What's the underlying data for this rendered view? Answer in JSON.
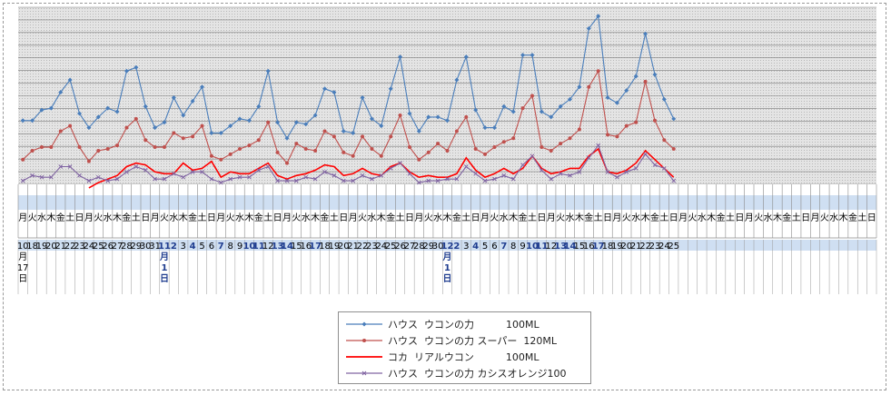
{
  "chart_data": {
    "type": "line",
    "ylim": [
      0,
      100
    ],
    "grid": true,
    "legend_position": "bottom-center",
    "weekday_labels": [
      "月",
      "火",
      "水",
      "木",
      "金",
      "土",
      "日",
      "月",
      "火",
      "水",
      "木",
      "金",
      "土",
      "日",
      "月",
      "火",
      "水",
      "木",
      "金",
      "土",
      "日",
      "月",
      "火",
      "水",
      "木",
      "金",
      "土",
      "日",
      "月",
      "火",
      "水",
      "木",
      "金",
      "土",
      "日",
      "月",
      "火",
      "水",
      "木",
      "金",
      "土",
      "日",
      "月",
      "火",
      "水",
      "木",
      "金",
      "土",
      "日",
      "月",
      "火",
      "水",
      "木",
      "金",
      "土",
      "日",
      "月",
      "火",
      "水",
      "木",
      "金",
      "土",
      "日",
      "月",
      "火",
      "水",
      "木",
      "金",
      "土",
      "日",
      "月",
      "火",
      "水",
      "木",
      "金",
      "土",
      "日",
      "月",
      "火",
      "水",
      "木",
      "金",
      "土",
      "日",
      "月",
      "火",
      "水",
      "木",
      "金",
      "土",
      "日"
    ],
    "date_labels": [
      "10\n月\n17\n日",
      "18",
      "19",
      "20",
      "21",
      "22",
      "23",
      "24",
      "25",
      "26",
      "27",
      "28",
      "29",
      "30",
      "31",
      "11\n月\n1\n日",
      "2",
      "3",
      "4",
      "5",
      "6",
      "7",
      "8",
      "9",
      "10",
      "11",
      "12",
      "13",
      "14",
      "15",
      "16",
      "17",
      "18",
      "19",
      "20",
      "21",
      "22",
      "23",
      "24",
      "25",
      "26",
      "27",
      "28",
      "29",
      "30",
      "12\n月\n1\n日",
      "2",
      "3",
      "4",
      "5",
      "6",
      "7",
      "8",
      "9",
      "10",
      "11",
      "12",
      "13",
      "14",
      "15",
      "16",
      "17",
      "18",
      "19",
      "20",
      "21",
      "22",
      "23",
      "24",
      "25"
    ],
    "date_label_style": [
      "black",
      "black",
      "black",
      "black",
      "black",
      "black",
      "black",
      "black",
      "black",
      "black",
      "black",
      "black",
      "black",
      "black",
      "black",
      "blue",
      "blue",
      "black",
      "blue",
      "black",
      "black",
      "blue",
      "black",
      "black",
      "blue",
      "blue",
      "black",
      "blue",
      "blue",
      "black",
      "black",
      "blue",
      "black",
      "black",
      "black",
      "black",
      "black",
      "black",
      "black",
      "black",
      "black",
      "black",
      "black",
      "black",
      "black",
      "blue",
      "blue",
      "black",
      "blue",
      "black",
      "black",
      "blue",
      "black",
      "black",
      "blue",
      "blue",
      "black",
      "blue",
      "blue",
      "black",
      "black",
      "blue",
      "black",
      "black",
      "black",
      "black",
      "black",
      "black",
      "black",
      "black"
    ],
    "series": [
      {
        "name": "ハウス ウコンの力 100ML",
        "color": "#4a7ebb",
        "values": [
          36,
          36,
          42,
          43,
          52,
          59,
          40,
          32,
          38,
          43,
          41,
          64,
          66,
          44,
          32,
          35,
          49,
          39,
          47,
          55,
          29,
          29,
          33,
          37,
          36,
          44,
          64,
          35,
          26,
          35,
          34,
          39,
          54,
          52,
          30,
          29,
          49,
          37,
          33,
          54,
          72,
          40,
          30,
          38,
          38,
          36,
          59,
          72,
          42,
          32,
          32,
          44,
          41,
          73,
          73,
          41,
          38,
          44,
          48,
          55,
          88,
          95,
          49,
          46,
          53,
          61,
          85,
          62,
          48,
          37
        ]
      },
      {
        "name": "ハウス ウコンの力 スーパー 120ML",
        "color": "#c0504d",
        "values": [
          14,
          19,
          21,
          21,
          30,
          33,
          21,
          13,
          19,
          20,
          22,
          32,
          37,
          25,
          21,
          21,
          29,
          26,
          27,
          33,
          16,
          14,
          17,
          20,
          22,
          25,
          35,
          18,
          12,
          23,
          20,
          19,
          30,
          27,
          18,
          16,
          27,
          20,
          16,
          27,
          39,
          21,
          14,
          18,
          23,
          19,
          30,
          38,
          20,
          17,
          21,
          24,
          26,
          43,
          50,
          21,
          19,
          23,
          26,
          31,
          55,
          64,
          28,
          27,
          33,
          35,
          58,
          36,
          25,
          20
        ]
      },
      {
        "name": "コカ リアルウコン 100ML",
        "color": "#ff0000",
        "values": [
          null,
          null,
          null,
          null,
          null,
          null,
          null,
          -2,
          1,
          3,
          5,
          10,
          12,
          11,
          7,
          6,
          6,
          12,
          8,
          9,
          13,
          4,
          7,
          6,
          6,
          9,
          12,
          5,
          3,
          5,
          6,
          8,
          11,
          10,
          5,
          6,
          9,
          6,
          5,
          10,
          12,
          7,
          4,
          5,
          4,
          4,
          6,
          15,
          8,
          4,
          6,
          9,
          6,
          9,
          16,
          9,
          6,
          7,
          9,
          9,
          16,
          20,
          7,
          6,
          8,
          12,
          19,
          14,
          9,
          4
        ]
      },
      {
        "name": "ハウス ウコンの力 カシスオレンジ100",
        "color": "#8064a2",
        "values": [
          2,
          5,
          4,
          4,
          10,
          10,
          5,
          2,
          4,
          2,
          3,
          7,
          10,
          8,
          3,
          3,
          6,
          4,
          7,
          7,
          3,
          1,
          3,
          4,
          4,
          8,
          10,
          2,
          2,
          2,
          4,
          3,
          7,
          5,
          2,
          2,
          5,
          3,
          5,
          9,
          12,
          6,
          1,
          2,
          2,
          3,
          3,
          10,
          6,
          2,
          3,
          5,
          3,
          11,
          16,
          8,
          3,
          6,
          5,
          7,
          15,
          22,
          7,
          4,
          7,
          9,
          17,
          11,
          9,
          2
        ]
      }
    ]
  },
  "legend": {
    "items": [
      {
        "label": "ハウス  ウコンの力          100ML",
        "color": "#4a7ebb",
        "marker": "diamond"
      },
      {
        "label": "ハウス  ウコンの力 スーパー  120ML",
        "color": "#c0504d",
        "marker": "circle"
      },
      {
        "label": "コカ  リアルウコン          100ML",
        "color": "#ff0000",
        "marker": "none"
      },
      {
        "label": "ハウス  ウコンの力 カシスオレンジ100",
        "color": "#8064a2",
        "marker": "x"
      }
    ]
  }
}
